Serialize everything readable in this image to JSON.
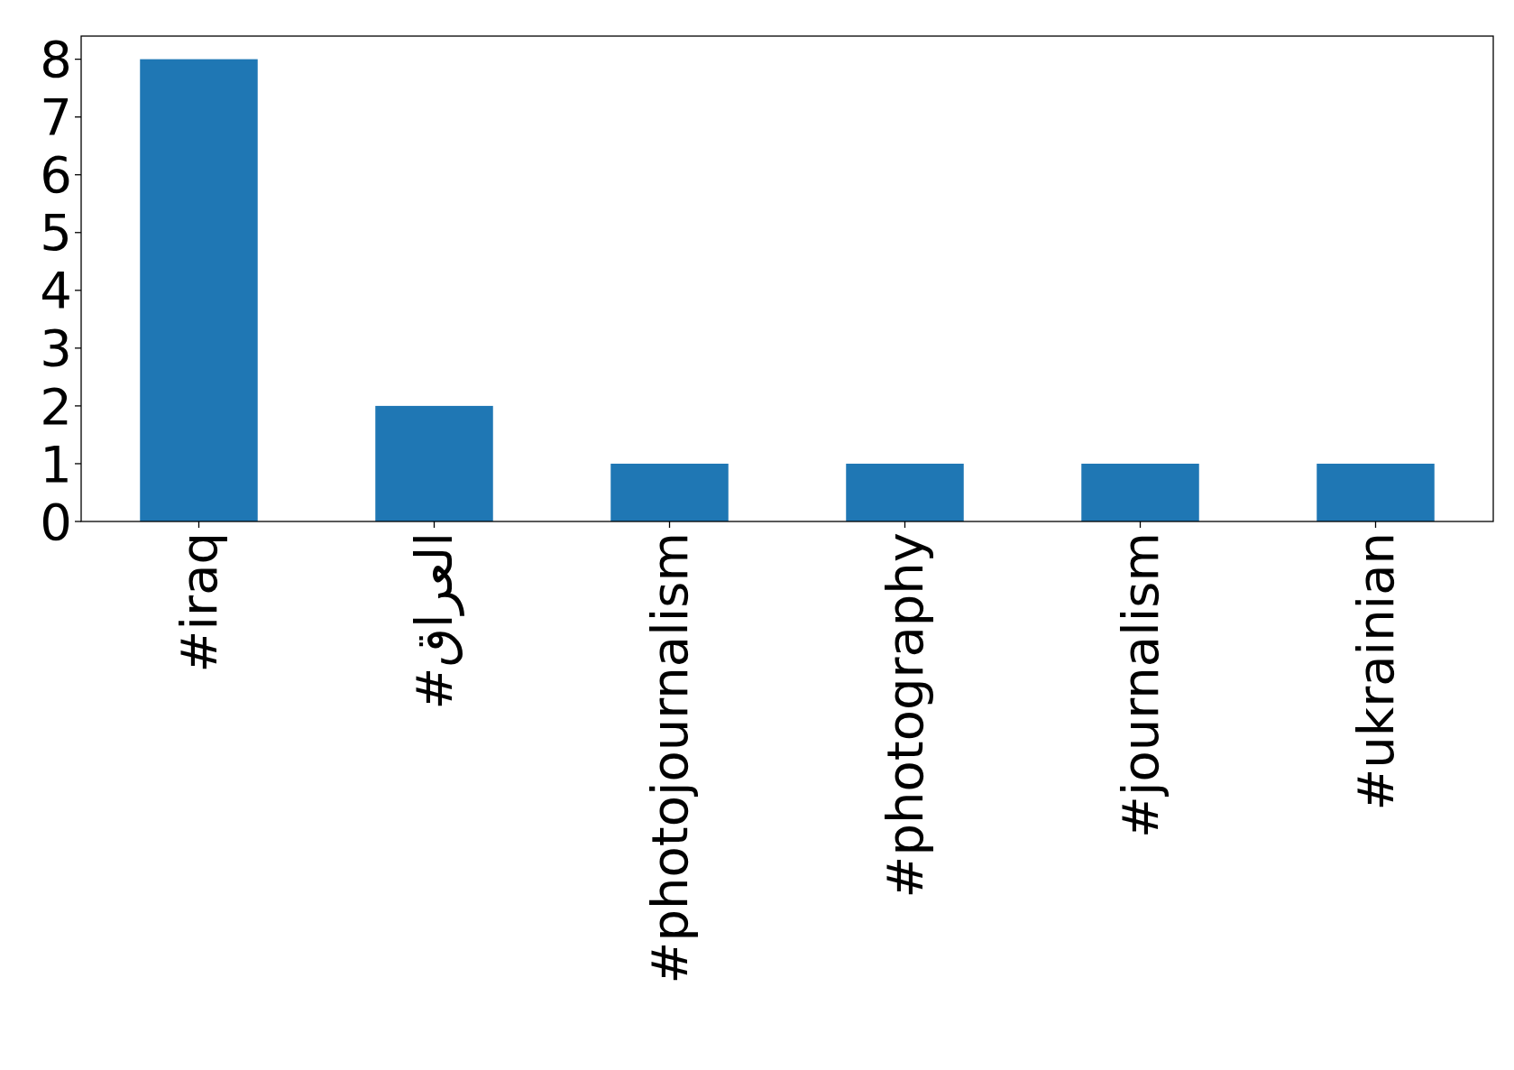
{
  "chart_data": {
    "type": "bar",
    "categories": [
      "#iraq",
      "#العراق",
      "#photojournalism",
      "#photography",
      "#journalism",
      "#ukrainian"
    ],
    "values": [
      8,
      2,
      1,
      1,
      1,
      1
    ],
    "color": "#1f77b4",
    "ylim": [
      0,
      8.4
    ],
    "yticks": [
      0,
      1,
      2,
      3,
      4,
      5,
      6,
      7,
      8
    ]
  }
}
